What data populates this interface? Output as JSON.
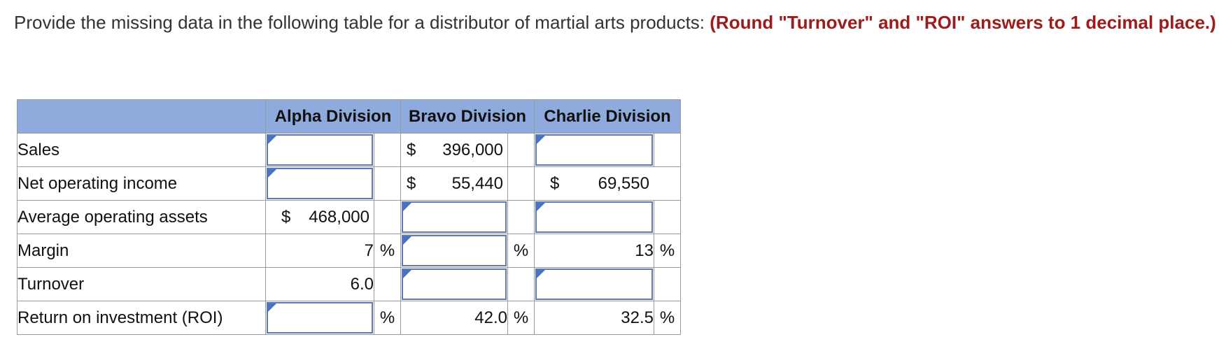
{
  "prompt": {
    "text": "Provide the missing data in the following table for a distributor of martial arts products: ",
    "instruction": "(Round \"Turnover\" and \"ROI\" answers to 1 decimal place.)"
  },
  "table": {
    "headers": [
      "",
      "Alpha Division",
      "Bravo Division",
      "Charlie Division"
    ],
    "rows": [
      {
        "label": "Sales",
        "alpha": "",
        "bravo": "396,000",
        "charlie": ""
      },
      {
        "label": "Net operating income",
        "alpha": "",
        "bravo": "55,440",
        "charlie": "69,550"
      },
      {
        "label": "Average operating assets",
        "alpha": "468,000",
        "bravo": "",
        "charlie": ""
      },
      {
        "label": "Margin",
        "alpha": "7",
        "bravo": "",
        "charlie": "13"
      },
      {
        "label": "Turnover",
        "alpha": "6.0",
        "bravo": "",
        "charlie": ""
      },
      {
        "label": "Return on investment (ROI)",
        "alpha": "",
        "bravo": "42.0",
        "charlie": "32.5"
      }
    ],
    "currency_symbol": "$",
    "percent_symbol": "%"
  },
  "colors": {
    "header_bg": "#8faadc",
    "instruction_red": "#9e1b1b",
    "input_border": "#5a79b5",
    "input_marker": "#4a72c4"
  }
}
